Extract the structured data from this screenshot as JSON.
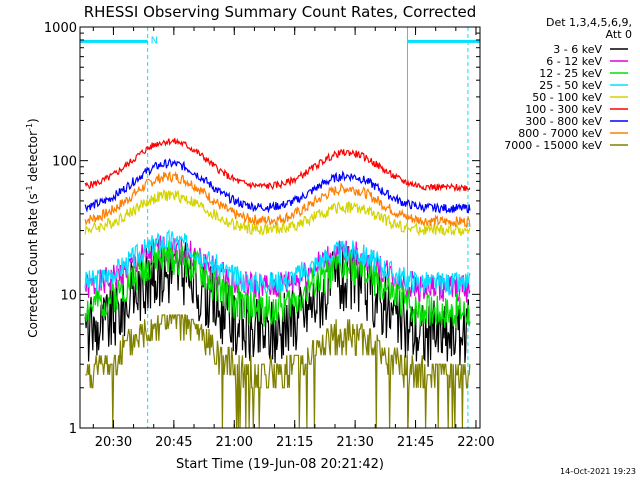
{
  "chart_data": {
    "type": "line",
    "title": "RHESSI Observing Summary Count Rates, Corrected",
    "xlabel": "Start Time (19-Jun-08 20:21:42)",
    "ylabel_main": "Corrected Count Rate (s",
    "ylabel_sup1": "-1",
    "ylabel_mid": " detector",
    "ylabel_sup2": "-1",
    "ylabel_end": ")",
    "y_scale": "log",
    "ylim": [
      1,
      1000
    ],
    "xlim": [
      "20:21:42",
      "22:01:00"
    ],
    "x_ticks": [
      "20:30",
      "20:45",
      "21:00",
      "21:15",
      "21:30",
      "21:45",
      "22:00"
    ],
    "y_ticks": [
      "1",
      "10",
      "100",
      "1000"
    ],
    "legend_title_1": "Det 1,3,4,5,6,9,",
    "legend_title_2": "Att 0",
    "legend_placement": "right",
    "flag_label": "N",
    "flag_color": "#00e0ff",
    "flag_segments": [
      [
        "20:21:42",
        "20:38:30"
      ],
      [
        "21:43:00",
        "22:01:00"
      ]
    ],
    "time_markers": [
      "20:38:30",
      "21:43:00",
      "21:58:00"
    ],
    "marker_style": [
      "dashed",
      "solid",
      "dashed"
    ],
    "timestamp": "14-Oct-2021 19:23",
    "series": [
      {
        "name": "3 - 6 keV",
        "color": "#000000",
        "base": 5,
        "peak1": 15,
        "peak2": 13,
        "noise": 0.12
      },
      {
        "name": "6 - 12 keV",
        "color": "#e000e0",
        "base": 11,
        "peak1": 22,
        "peak2": 20,
        "noise": 0.05
      },
      {
        "name": "12 - 25 keV",
        "color": "#00e000",
        "base": 7.5,
        "peak1": 19,
        "peak2": 16,
        "noise": 0.06
      },
      {
        "name": "25 - 50 keV",
        "color": "#00e0ff",
        "base": 12,
        "peak1": 25,
        "peak2": 21,
        "noise": 0.04
      },
      {
        "name": "50 - 100 keV",
        "color": "#d4d400",
        "base": 30,
        "peak1": 55,
        "peak2": 45,
        "noise": 0.02
      },
      {
        "name": "100 - 300 keV",
        "color": "#ff0000",
        "base": 63,
        "peak1": 140,
        "peak2": 115,
        "noise": 0.012
      },
      {
        "name": "300 - 800 keV",
        "color": "#0000ff",
        "base": 44,
        "peak1": 95,
        "peak2": 77,
        "noise": 0.015
      },
      {
        "name": "800 - 7000 keV",
        "color": "#ff7f00",
        "base": 35,
        "peak1": 76,
        "peak2": 62,
        "noise": 0.018
      },
      {
        "name": "7000 - 15000 keV",
        "color": "#808000",
        "base": 2.5,
        "peak1": 6.5,
        "peak2": 5,
        "noise": 0.0
      }
    ]
  }
}
